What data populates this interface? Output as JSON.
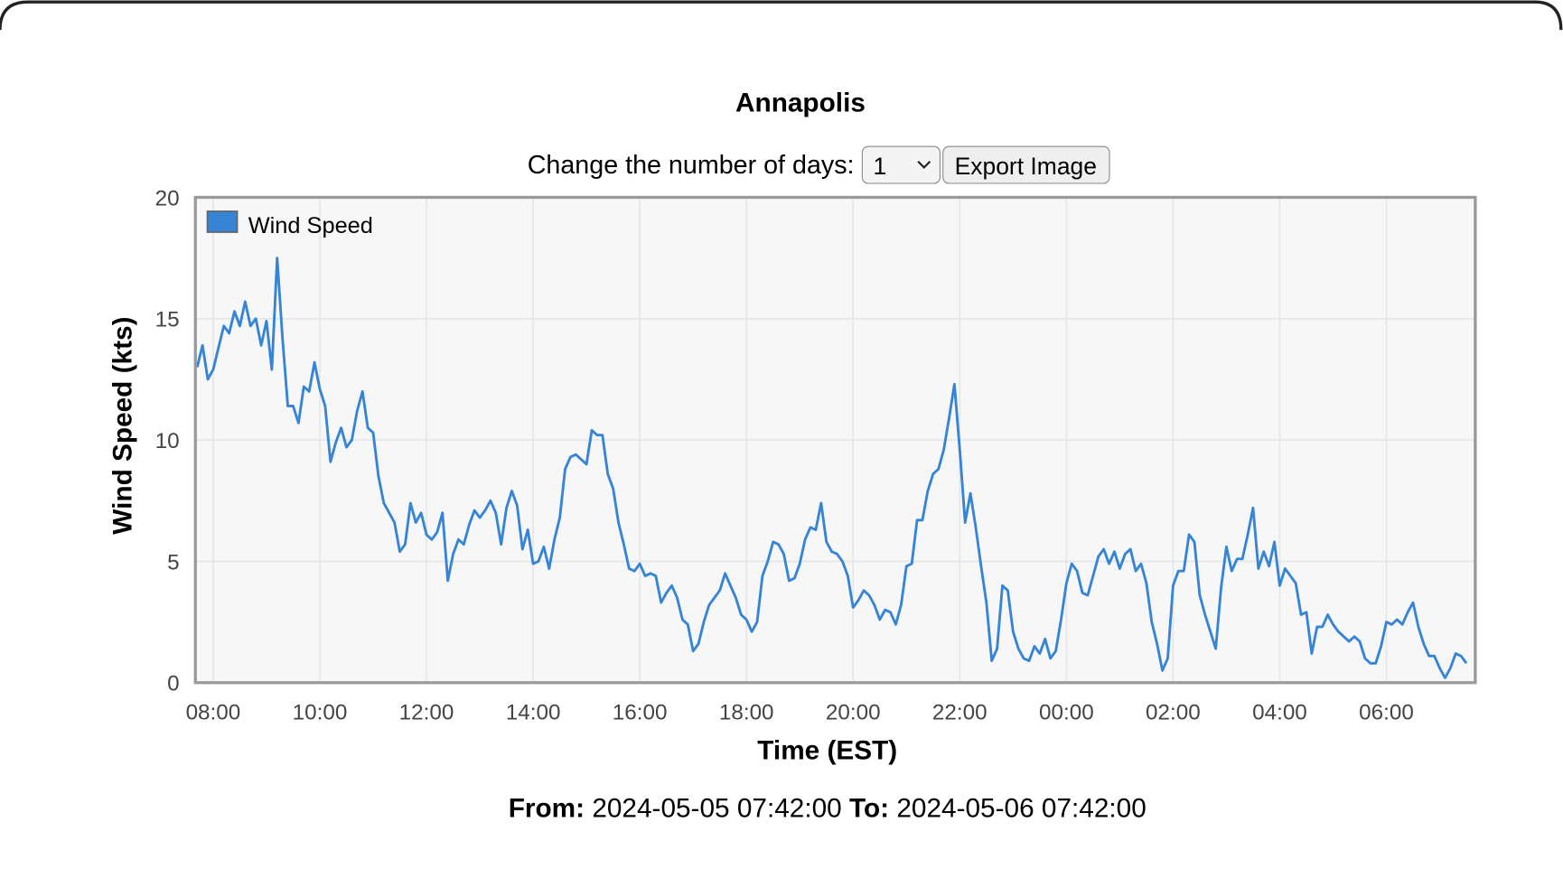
{
  "page": {
    "controls": {
      "days_label": "Change the number of days:",
      "days_value": "1",
      "export_button": "Export Image"
    },
    "range": {
      "from_label": "From:",
      "from": "2024-05-05 07:42:00",
      "to_label": "To:",
      "to": "2024-05-06 07:42:00"
    }
  },
  "chart_data": {
    "type": "line",
    "title": "Annapolis",
    "x_label": "Time (EST)",
    "y_label": "Wind Speed (kts)",
    "x": [
      "2024-05-05 07:42",
      "2024-05-05 07:48",
      "2024-05-05 07:54",
      "2024-05-05 08:00",
      "2024-05-05 08:06",
      "2024-05-05 08:12",
      "2024-05-05 08:18",
      "2024-05-05 08:24",
      "2024-05-05 08:30",
      "2024-05-05 08:36",
      "2024-05-05 08:42",
      "2024-05-05 08:48",
      "2024-05-05 08:54",
      "2024-05-05 09:00",
      "2024-05-05 09:06",
      "2024-05-05 09:12",
      "2024-05-05 09:18",
      "2024-05-05 09:24",
      "2024-05-05 09:30",
      "2024-05-05 09:36",
      "2024-05-05 09:42",
      "2024-05-05 09:48",
      "2024-05-05 09:54",
      "2024-05-05 10:00",
      "2024-05-05 10:06",
      "2024-05-05 10:12",
      "2024-05-05 10:18",
      "2024-05-05 10:24",
      "2024-05-05 10:30",
      "2024-05-05 10:36",
      "2024-05-05 10:42",
      "2024-05-05 10:48",
      "2024-05-05 10:54",
      "2024-05-05 11:00",
      "2024-05-05 11:06",
      "2024-05-05 11:12",
      "2024-05-05 11:18",
      "2024-05-05 11:24",
      "2024-05-05 11:30",
      "2024-05-05 11:36",
      "2024-05-05 11:42",
      "2024-05-05 11:48",
      "2024-05-05 11:54",
      "2024-05-05 12:00",
      "2024-05-05 12:06",
      "2024-05-05 12:12",
      "2024-05-05 12:18",
      "2024-05-05 12:24",
      "2024-05-05 12:30",
      "2024-05-05 12:36",
      "2024-05-05 12:42",
      "2024-05-05 12:48",
      "2024-05-05 12:54",
      "2024-05-05 13:00",
      "2024-05-05 13:06",
      "2024-05-05 13:12",
      "2024-05-05 13:18",
      "2024-05-05 13:24",
      "2024-05-05 13:30",
      "2024-05-05 13:36",
      "2024-05-05 13:42",
      "2024-05-05 13:48",
      "2024-05-05 13:54",
      "2024-05-05 14:00",
      "2024-05-05 14:06",
      "2024-05-05 14:12",
      "2024-05-05 14:18",
      "2024-05-05 14:24",
      "2024-05-05 14:30",
      "2024-05-05 14:36",
      "2024-05-05 14:42",
      "2024-05-05 14:48",
      "2024-05-05 14:54",
      "2024-05-05 15:00",
      "2024-05-05 15:06",
      "2024-05-05 15:12",
      "2024-05-05 15:18",
      "2024-05-05 15:24",
      "2024-05-05 15:30",
      "2024-05-05 15:36",
      "2024-05-05 15:42",
      "2024-05-05 15:48",
      "2024-05-05 15:54",
      "2024-05-05 16:00",
      "2024-05-05 16:06",
      "2024-05-05 16:12",
      "2024-05-05 16:18",
      "2024-05-05 16:24",
      "2024-05-05 16:30",
      "2024-05-05 16:36",
      "2024-05-05 16:42",
      "2024-05-05 16:48",
      "2024-05-05 16:54",
      "2024-05-05 17:00",
      "2024-05-05 17:06",
      "2024-05-05 17:12",
      "2024-05-05 17:18",
      "2024-05-05 17:24",
      "2024-05-05 17:30",
      "2024-05-05 17:36",
      "2024-05-05 17:42",
      "2024-05-05 17:48",
      "2024-05-05 17:54",
      "2024-05-05 18:00",
      "2024-05-05 18:06",
      "2024-05-05 18:12",
      "2024-05-05 18:18",
      "2024-05-05 18:24",
      "2024-05-05 18:30",
      "2024-05-05 18:36",
      "2024-05-05 18:42",
      "2024-05-05 18:48",
      "2024-05-05 18:54",
      "2024-05-05 19:00",
      "2024-05-05 19:06",
      "2024-05-05 19:12",
      "2024-05-05 19:18",
      "2024-05-05 19:24",
      "2024-05-05 19:30",
      "2024-05-05 19:36",
      "2024-05-05 19:42",
      "2024-05-05 19:48",
      "2024-05-05 19:54",
      "2024-05-05 20:00",
      "2024-05-05 20:06",
      "2024-05-05 20:12",
      "2024-05-05 20:18",
      "2024-05-05 20:24",
      "2024-05-05 20:30",
      "2024-05-05 20:36",
      "2024-05-05 20:42",
      "2024-05-05 20:48",
      "2024-05-05 20:54",
      "2024-05-05 21:00",
      "2024-05-05 21:06",
      "2024-05-05 21:12",
      "2024-05-05 21:18",
      "2024-05-05 21:24",
      "2024-05-05 21:30",
      "2024-05-05 21:36",
      "2024-05-05 21:42",
      "2024-05-05 21:48",
      "2024-05-05 21:54",
      "2024-05-05 22:00",
      "2024-05-05 22:06",
      "2024-05-05 22:12",
      "2024-05-05 22:18",
      "2024-05-05 22:24",
      "2024-05-05 22:30",
      "2024-05-05 22:36",
      "2024-05-05 22:42",
      "2024-05-05 22:48",
      "2024-05-05 22:54",
      "2024-05-05 23:00",
      "2024-05-05 23:06",
      "2024-05-05 23:12",
      "2024-05-05 23:18",
      "2024-05-05 23:24",
      "2024-05-05 23:30",
      "2024-05-05 23:36",
      "2024-05-05 23:42",
      "2024-05-05 23:48",
      "2024-05-05 23:54",
      "2024-05-06 00:00",
      "2024-05-06 00:06",
      "2024-05-06 00:12",
      "2024-05-06 00:18",
      "2024-05-06 00:24",
      "2024-05-06 00:30",
      "2024-05-06 00:36",
      "2024-05-06 00:42",
      "2024-05-06 00:48",
      "2024-05-06 00:54",
      "2024-05-06 01:00",
      "2024-05-06 01:06",
      "2024-05-06 01:12",
      "2024-05-06 01:18",
      "2024-05-06 01:24",
      "2024-05-06 01:30",
      "2024-05-06 01:36",
      "2024-05-06 01:42",
      "2024-05-06 01:48",
      "2024-05-06 01:54",
      "2024-05-06 02:00",
      "2024-05-06 02:06",
      "2024-05-06 02:12",
      "2024-05-06 02:18",
      "2024-05-06 02:24",
      "2024-05-06 02:30",
      "2024-05-06 02:36",
      "2024-05-06 02:42",
      "2024-05-06 02:48",
      "2024-05-06 02:54",
      "2024-05-06 03:00",
      "2024-05-06 03:06",
      "2024-05-06 03:12",
      "2024-05-06 03:18",
      "2024-05-06 03:24",
      "2024-05-06 03:30",
      "2024-05-06 03:36",
      "2024-05-06 03:42",
      "2024-05-06 03:48",
      "2024-05-06 03:54",
      "2024-05-06 04:00",
      "2024-05-06 04:06",
      "2024-05-06 04:12",
      "2024-05-06 04:18",
      "2024-05-06 04:24",
      "2024-05-06 04:30",
      "2024-05-06 04:36",
      "2024-05-06 04:42",
      "2024-05-06 04:48",
      "2024-05-06 04:54",
      "2024-05-06 05:00",
      "2024-05-06 05:06",
      "2024-05-06 05:12",
      "2024-05-06 05:18",
      "2024-05-06 05:24",
      "2024-05-06 05:30",
      "2024-05-06 05:36",
      "2024-05-06 05:42",
      "2024-05-06 05:48",
      "2024-05-06 05:54",
      "2024-05-06 06:00",
      "2024-05-06 06:06",
      "2024-05-06 06:12",
      "2024-05-06 06:18",
      "2024-05-06 06:24",
      "2024-05-06 06:30",
      "2024-05-06 06:36",
      "2024-05-06 06:42",
      "2024-05-06 06:48",
      "2024-05-06 06:54",
      "2024-05-06 07:00",
      "2024-05-06 07:06",
      "2024-05-06 07:12",
      "2024-05-06 07:18",
      "2024-05-06 07:24",
      "2024-05-06 07:30"
    ],
    "series": [
      {
        "name": "Wind Speed",
        "color": "#3584d6",
        "values": [
          13.0,
          13.9,
          12.5,
          12.9,
          13.8,
          14.7,
          14.4,
          15.3,
          14.7,
          15.7,
          14.7,
          15.0,
          13.9,
          14.9,
          12.9,
          17.5,
          14.2,
          11.4,
          11.4,
          10.7,
          12.2,
          12.0,
          13.2,
          12.1,
          11.4,
          9.1,
          9.9,
          10.5,
          9.7,
          10.0,
          11.2,
          12.0,
          10.5,
          10.3,
          8.5,
          7.4,
          7.0,
          6.6,
          5.4,
          5.7,
          7.4,
          6.6,
          7.0,
          6.1,
          5.9,
          6.2,
          7.0,
          4.2,
          5.3,
          5.9,
          5.7,
          6.5,
          7.1,
          6.8,
          7.1,
          7.5,
          7.0,
          5.7,
          7.2,
          7.9,
          7.3,
          5.5,
          6.3,
          4.9,
          5.0,
          5.6,
          4.7,
          5.9,
          6.8,
          8.8,
          9.3,
          9.4,
          9.2,
          9.0,
          10.4,
          10.2,
          10.2,
          8.6,
          8.0,
          6.6,
          5.7,
          4.7,
          4.6,
          4.9,
          4.4,
          4.5,
          4.4,
          3.3,
          3.7,
          4.0,
          3.5,
          2.6,
          2.4,
          1.3,
          1.6,
          2.5,
          3.2,
          3.5,
          3.8,
          4.5,
          4.0,
          3.5,
          2.8,
          2.6,
          2.1,
          2.5,
          4.4,
          5.0,
          5.8,
          5.7,
          5.3,
          4.2,
          4.3,
          4.9,
          5.9,
          6.4,
          6.3,
          7.4,
          5.8,
          5.4,
          5.3,
          5.0,
          4.4,
          3.1,
          3.4,
          3.8,
          3.6,
          3.2,
          2.6,
          3.0,
          2.9,
          2.4,
          3.2,
          4.8,
          4.9,
          6.7,
          6.7,
          7.9,
          8.6,
          8.8,
          9.6,
          10.9,
          12.3,
          9.6,
          6.6,
          7.8,
          6.4,
          4.8,
          3.3,
          0.9,
          1.4,
          4.0,
          3.8,
          2.1,
          1.4,
          1.0,
          0.9,
          1.5,
          1.2,
          1.8,
          1.0,
          1.3,
          2.6,
          4.1,
          4.9,
          4.6,
          3.7,
          3.6,
          4.4,
          5.2,
          5.5,
          4.9,
          5.4,
          4.7,
          5.3,
          5.5,
          4.6,
          4.9,
          4.1,
          2.5,
          1.6,
          0.5,
          1.0,
          4.0,
          4.6,
          4.6,
          6.1,
          5.8,
          3.6,
          2.8,
          2.1,
          1.4,
          3.9,
          5.6,
          4.6,
          5.1,
          5.1,
          6.1,
          7.2,
          4.7,
          5.4,
          4.8,
          5.8,
          4.0,
          4.7,
          4.4,
          4.1,
          2.8,
          2.9,
          1.2,
          2.3,
          2.3,
          2.8,
          2.4,
          2.1,
          1.9,
          1.7,
          1.9,
          1.7,
          1.0,
          0.8,
          0.8,
          1.5,
          2.5,
          2.4,
          2.6,
          2.4,
          2.9,
          3.3,
          2.3,
          1.6,
          1.1,
          1.1,
          0.6,
          0.2,
          0.6,
          1.2,
          1.1,
          0.8
        ]
      }
    ],
    "xlim": [
      "2024-05-05 07:40",
      "2024-05-06 07:40"
    ],
    "xticks": [
      {
        "value": "2024-05-05 08:00",
        "label": "08:00"
      },
      {
        "value": "2024-05-05 10:00",
        "label": "10:00"
      },
      {
        "value": "2024-05-05 12:00",
        "label": "12:00"
      },
      {
        "value": "2024-05-05 14:00",
        "label": "14:00"
      },
      {
        "value": "2024-05-05 16:00",
        "label": "16:00"
      },
      {
        "value": "2024-05-05 18:00",
        "label": "18:00"
      },
      {
        "value": "2024-05-05 20:00",
        "label": "20:00"
      },
      {
        "value": "2024-05-05 22:00",
        "label": "22:00"
      },
      {
        "value": "2024-05-06 00:00",
        "label": "00:00"
      },
      {
        "value": "2024-05-06 02:00",
        "label": "02:00"
      },
      {
        "value": "2024-05-06 04:00",
        "label": "04:00"
      },
      {
        "value": "2024-05-06 06:00",
        "label": "06:00"
      }
    ],
    "ylim": [
      0,
      20
    ],
    "yticks": [
      0,
      5,
      10,
      15,
      20
    ],
    "grid": true,
    "legend": "upper left"
  }
}
